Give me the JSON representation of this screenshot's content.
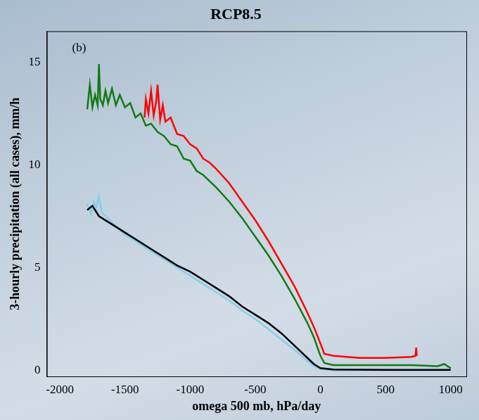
{
  "chart_data": {
    "type": "line",
    "title": "RCP8.5",
    "panel_label": "(b)",
    "x_label": "omega 500 mb, hPa/day",
    "y_label": "3-hourly precipitation (all cases), mm/h",
    "xlim": [
      -2100,
      1120
    ],
    "xticks": [
      -2000,
      -1500,
      -1000,
      -500,
      0,
      500,
      1000
    ],
    "ylim": [
      -0.3,
      16.5
    ],
    "yticks": [
      0,
      5,
      10,
      15
    ],
    "grid": false,
    "series": [
      {
        "color": "#137a13",
        "x": [
          -1790,
          -1770,
          -1750,
          -1730,
          -1710,
          -1700,
          -1690,
          -1670,
          -1650,
          -1630,
          -1600,
          -1570,
          -1540,
          -1500,
          -1460,
          -1420,
          -1380,
          -1340,
          -1300,
          -1250,
          -1200,
          -1150,
          -1100,
          -1050,
          -1000,
          -950,
          -900,
          -850,
          -800,
          -700,
          -600,
          -500,
          -400,
          -300,
          -200,
          -100,
          -50,
          0,
          30,
          100,
          300,
          500,
          700,
          900,
          950,
          1000
        ],
        "values": [
          12.7,
          13.9,
          12.8,
          13.4,
          12.9,
          14.9,
          13.2,
          12.9,
          13.6,
          13.0,
          13.7,
          12.9,
          13.4,
          12.8,
          13.0,
          12.3,
          12.5,
          11.9,
          12.0,
          11.6,
          11.4,
          11.0,
          10.9,
          10.3,
          10.2,
          9.7,
          9.5,
          9.2,
          8.9,
          8.2,
          7.4,
          6.5,
          5.6,
          4.6,
          3.5,
          2.3,
          1.6,
          0.7,
          0.35,
          0.25,
          0.25,
          0.25,
          0.25,
          0.2,
          0.3,
          0.1
        ]
      },
      {
        "color": "#ff0000",
        "x": [
          -1350,
          -1340,
          -1320,
          -1300,
          -1280,
          -1260,
          -1250,
          -1230,
          -1210,
          -1190,
          -1150,
          -1100,
          -1050,
          -1000,
          -950,
          -900,
          -850,
          -800,
          -700,
          -600,
          -500,
          -400,
          -300,
          -200,
          -100,
          -50,
          0,
          30,
          100,
          300,
          500,
          700,
          730,
          735,
          740
        ],
        "values": [
          12.3,
          13.2,
          12.5,
          13.6,
          12.4,
          13.1,
          13.9,
          12.2,
          12.9,
          12.1,
          12.3,
          11.5,
          11.4,
          11.0,
          10.8,
          10.3,
          10.1,
          9.8,
          9.1,
          8.2,
          7.3,
          6.3,
          5.2,
          4.1,
          2.8,
          2.1,
          1.3,
          0.8,
          0.7,
          0.6,
          0.6,
          0.65,
          0.7,
          1.1,
          0.7
        ]
      },
      {
        "color": "#000000",
        "x": [
          -1790,
          -1750,
          -1700,
          -1600,
          -1500,
          -1400,
          -1300,
          -1200,
          -1100,
          -1000,
          -900,
          -800,
          -700,
          -600,
          -500,
          -400,
          -300,
          -200,
          -100,
          -50,
          0,
          100,
          500,
          1000
        ],
        "values": [
          7.8,
          8.0,
          7.5,
          7.1,
          6.7,
          6.3,
          5.9,
          5.5,
          5.1,
          4.8,
          4.4,
          4.0,
          3.6,
          3.1,
          2.7,
          2.3,
          1.8,
          1.2,
          0.6,
          0.3,
          0.1,
          0.03,
          0.02,
          0.02
        ]
      },
      {
        "color": "#87ceeb",
        "x": [
          -1790,
          -1760,
          -1740,
          -1720,
          -1700,
          -1680,
          -1650,
          -1600,
          -1500,
          -1400,
          -1300,
          -1200,
          -1100,
          -1000,
          -900,
          -800,
          -700,
          -600,
          -500,
          -400,
          -300,
          -200,
          -100,
          -50,
          0,
          100,
          500,
          1000
        ],
        "values": [
          8.1,
          7.6,
          8.2,
          7.9,
          8.5,
          7.7,
          7.5,
          7.2,
          6.6,
          6.2,
          5.8,
          5.4,
          5.0,
          4.6,
          4.2,
          3.8,
          3.4,
          2.9,
          2.5,
          2.0,
          1.5,
          1.0,
          0.45,
          0.2,
          0.05,
          0.0,
          0.0,
          0.0
        ]
      }
    ]
  }
}
